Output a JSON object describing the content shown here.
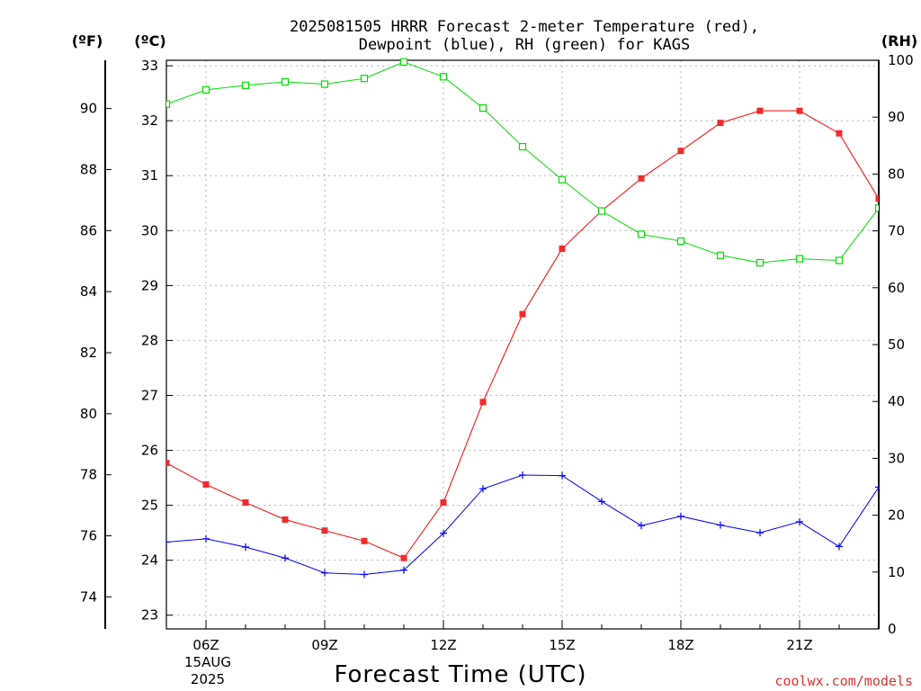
{
  "chart_data": {
    "type": "line",
    "title": [
      "2025081505 HRRR Forecast 2-meter Temperature (red),",
      "Dewpoint (blue), RH (green) for KAGS"
    ],
    "xlabel": "Forecast Time (UTC)",
    "units": {
      "left_outer": "(ºF)",
      "left_inner": "(ºC)",
      "right": "(RH)"
    },
    "credit": "coolwx.com/models",
    "date_label": [
      "15AUG",
      "2025"
    ],
    "x_hours": [
      5,
      6,
      7,
      8,
      9,
      10,
      11,
      12,
      13,
      14,
      15,
      16,
      17,
      18,
      19,
      20,
      21,
      22,
      23
    ],
    "x_ticks": [
      {
        "hour": 6,
        "label": "06Z"
      },
      {
        "hour": 9,
        "label": "09Z"
      },
      {
        "hour": 12,
        "label": "12Z"
      },
      {
        "hour": 15,
        "label": "15Z"
      },
      {
        "hour": 18,
        "label": "18Z"
      },
      {
        "hour": 21,
        "label": "21Z"
      }
    ],
    "xlim": [
      5,
      23
    ],
    "ylim_c": [
      22.75,
      33.1
    ],
    "ylim_rh": [
      0,
      100
    ],
    "y_ticks_c": [
      23,
      24,
      25,
      26,
      27,
      28,
      29,
      30,
      31,
      32,
      33
    ],
    "y_ticks_f": [
      74,
      76,
      78,
      80,
      82,
      84,
      86,
      88,
      90
    ],
    "y_ticks_rh": [
      0,
      10,
      20,
      30,
      40,
      50,
      60,
      70,
      80,
      90,
      100
    ],
    "grid": true,
    "series": [
      {
        "name": "Temperature (red)",
        "axis": "c",
        "color": "#ff0000",
        "marker": "filled-square",
        "values": [
          25.77,
          25.38,
          25.05,
          24.74,
          24.54,
          24.35,
          24.04,
          25.05,
          26.88,
          28.48,
          29.67,
          30.36,
          30.95,
          31.45,
          31.96,
          32.18,
          32.18,
          31.77,
          30.58
        ]
      },
      {
        "name": "Dewpoint (blue)",
        "axis": "c",
        "color": "#0000ff",
        "marker": "plus",
        "values": [
          24.33,
          24.39,
          24.24,
          24.04,
          23.77,
          23.74,
          23.82,
          24.49,
          25.3,
          25.55,
          25.54,
          25.07,
          24.63,
          24.8,
          24.64,
          24.5,
          24.7,
          24.25,
          25.33
        ]
      },
      {
        "name": "RH (green)",
        "axis": "rh",
        "color": "#00dd00",
        "marker": "open-square",
        "values": [
          92.3,
          94.8,
          95.6,
          96.2,
          95.8,
          96.8,
          99.7,
          97.1,
          91.6,
          84.8,
          79.0,
          73.5,
          69.4,
          68.2,
          65.7,
          64.4,
          65.1,
          64.8,
          74.0
        ]
      }
    ]
  }
}
